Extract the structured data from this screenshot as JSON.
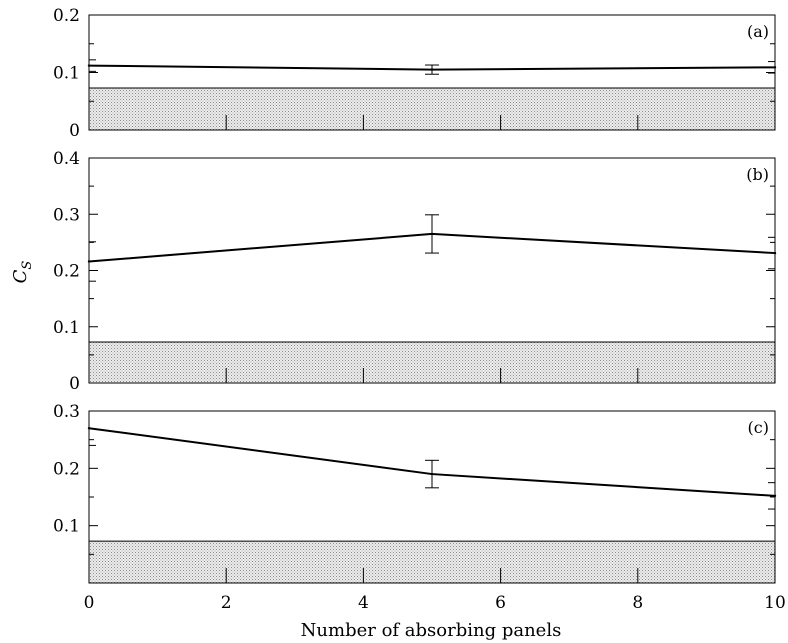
{
  "chart_data": [
    {
      "type": "line",
      "panel_label": "(a)",
      "x": [
        0,
        5,
        10
      ],
      "values": [
        0.112,
        0.105,
        0.109
      ],
      "errors": [
        0.01,
        0.008,
        0.01
      ],
      "ylim": [
        0,
        0.2
      ],
      "yticks": [
        0,
        0.1,
        0.2
      ],
      "ytick_labels": [
        "0",
        "0.1",
        "0.2"
      ],
      "shaded_band": [
        0,
        0.073
      ],
      "color": "#000000"
    },
    {
      "type": "line",
      "panel_label": "(b)",
      "x": [
        0,
        5,
        10
      ],
      "values": [
        0.216,
        0.265,
        0.231
      ],
      "errors": [
        0.035,
        0.034,
        0.028
      ],
      "ylim": [
        0,
        0.4
      ],
      "yticks": [
        0,
        0.1,
        0.2,
        0.3,
        0.4
      ],
      "ytick_labels": [
        "0",
        "0.1",
        "0.2",
        "0.3",
        "0.4"
      ],
      "shaded_band": [
        0,
        0.073
      ],
      "color": "#000000"
    },
    {
      "type": "line",
      "panel_label": "(c)",
      "x": [
        0,
        5,
        10
      ],
      "values": [
        0.27,
        0.19,
        0.152
      ],
      "errors": [
        0.03,
        0.024,
        0.023
      ],
      "ylim": [
        0,
        0.3
      ],
      "yticks": [
        0.1,
        0.2,
        0.3
      ],
      "ytick_labels": [
        "0.1",
        "0.2",
        "0.3"
      ],
      "shaded_band": [
        0,
        0.073
      ],
      "xlim": [
        0,
        10
      ],
      "xticks": [
        0,
        2,
        4,
        6,
        8,
        10
      ],
      "xtick_labels": [
        "0",
        "2",
        "4",
        "6",
        "8",
        "10"
      ],
      "xlabel": "Number of absorbing panels",
      "color": "#000000"
    }
  ],
  "shared": {
    "ylabel_main": "C",
    "ylabel_sub": "S",
    "xlabel": "Number of absorbing panels",
    "xlim": [
      0,
      10
    ],
    "xticks": [
      0,
      2,
      4,
      6,
      8,
      10
    ],
    "band_fill": "#dedede",
    "line_color": "#000000"
  }
}
